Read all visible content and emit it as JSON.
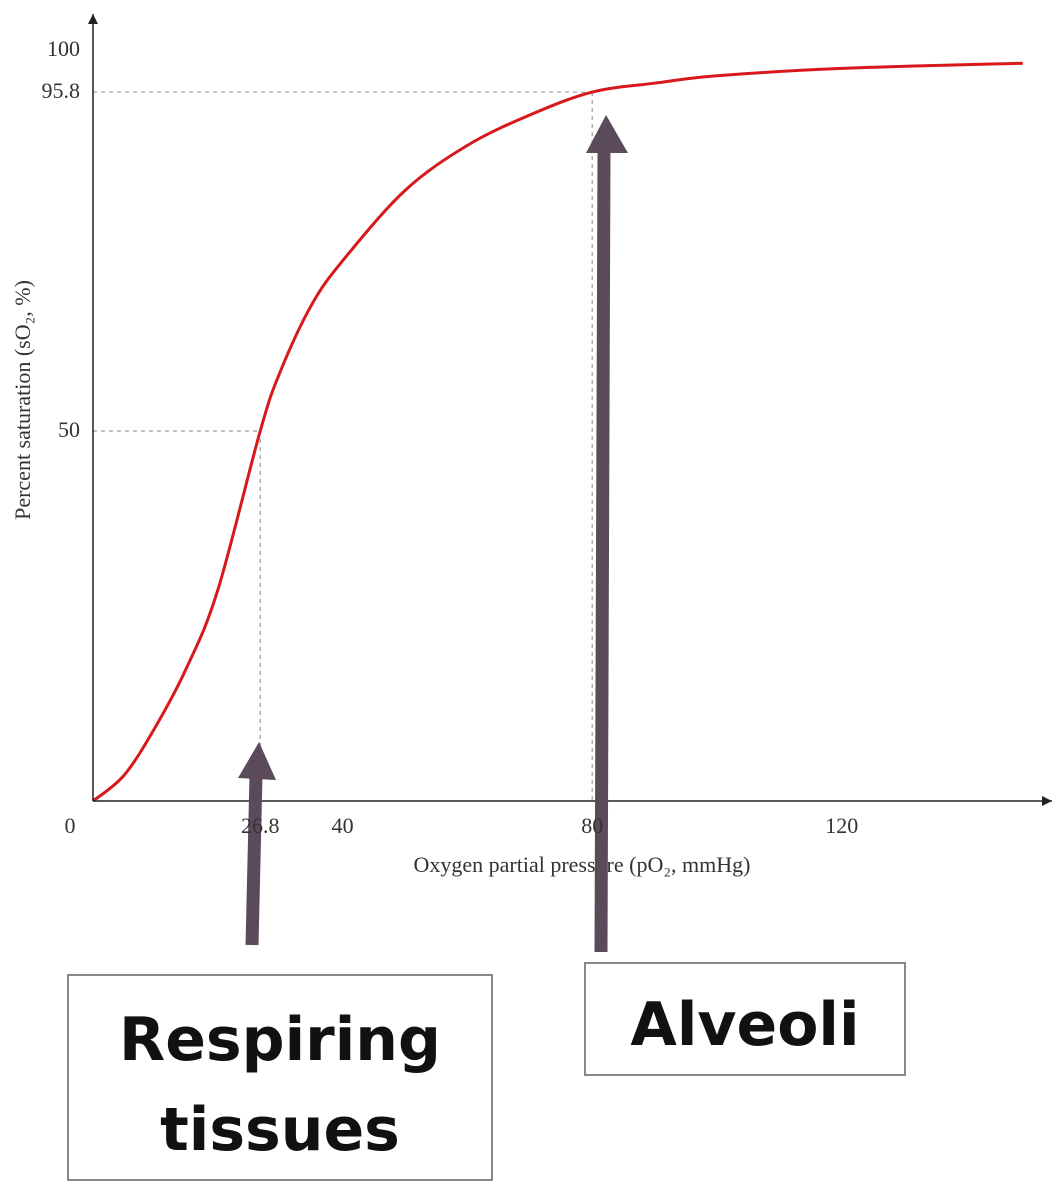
{
  "chart_data": {
    "type": "line",
    "x_label": "Oxygen partial pressure (pO₂, mmHg)",
    "y_label": "Percent saturation (sO₂, %)",
    "x": [
      0,
      5,
      10,
      15,
      20,
      26.8,
      30,
      35,
      40,
      50,
      60,
      70,
      80,
      90,
      100,
      120,
      149
    ],
    "values": [
      0,
      3.5,
      10,
      18,
      28.5,
      50,
      58,
      67,
      73,
      82.5,
      88.6,
      92.7,
      95.8,
      97,
      98,
      99,
      99.7
    ],
    "color": "#d7191c",
    "xlim": [
      0,
      153
    ],
    "ylim": [
      0,
      106
    ],
    "xticks": [
      0,
      26.8,
      40,
      80,
      120
    ],
    "yticks": [
      50,
      95.8,
      100
    ],
    "annotations": [
      {
        "text": "Respiring tissues"
      },
      {
        "text": "Alveoli"
      }
    ]
  }
}
